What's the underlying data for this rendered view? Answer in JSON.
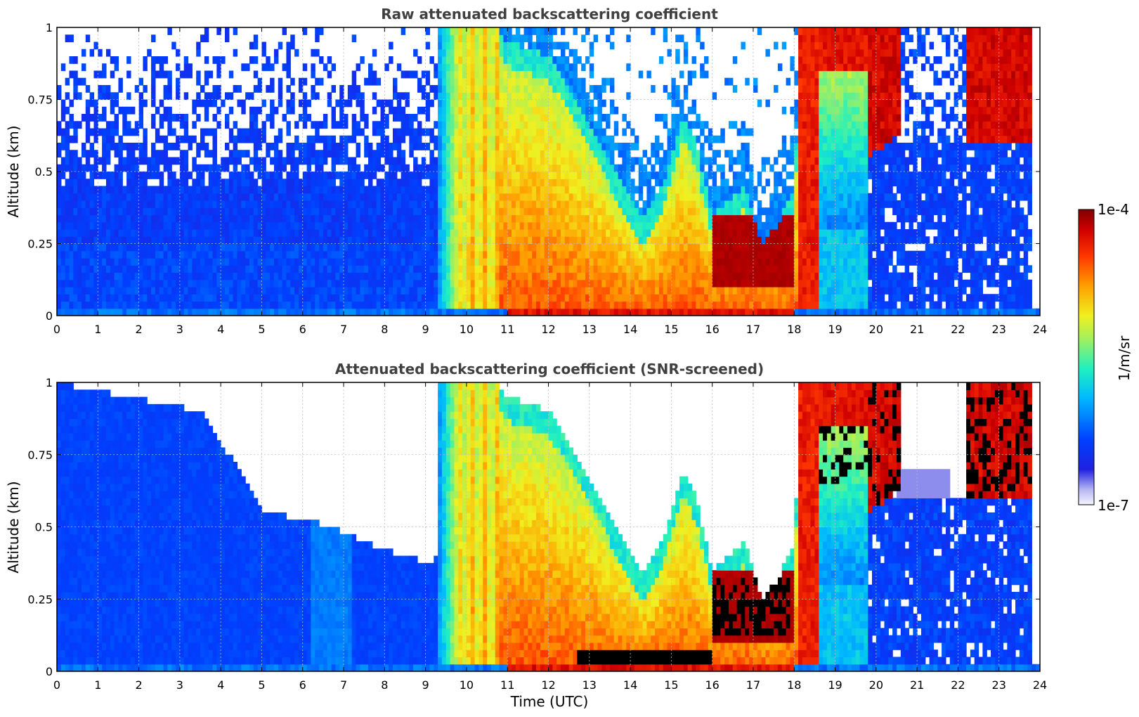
{
  "chart_data": [
    {
      "type": "heatmap",
      "title": "Raw attenuated backscattering coefficient",
      "xlabel": "",
      "ylabel": "Altitude (km)",
      "xlim": [
        0,
        24
      ],
      "ylim": [
        0,
        1
      ],
      "x_ticks": [
        "0",
        "1",
        "2",
        "3",
        "4",
        "5",
        "6",
        "7",
        "8",
        "9",
        "10",
        "11",
        "12",
        "13",
        "14",
        "15",
        "16",
        "17",
        "18",
        "19",
        "20",
        "21",
        "22",
        "23",
        "24"
      ],
      "y_ticks": [
        "0",
        "0.25",
        "0.5",
        "0.75",
        "1"
      ],
      "grid": true,
      "colorscale": "jet (log)",
      "color_range": [
        "1e-7",
        "1e-4"
      ],
      "screened": false
    },
    {
      "type": "heatmap",
      "title": "Attenuated backscattering coefficient (SNR-screened)",
      "xlabel": "Time (UTC)",
      "ylabel": "Altitude (km)",
      "xlim": [
        0,
        24
      ],
      "ylim": [
        0,
        1
      ],
      "x_ticks": [
        "0",
        "1",
        "2",
        "3",
        "4",
        "5",
        "6",
        "7",
        "8",
        "9",
        "10",
        "11",
        "12",
        "13",
        "14",
        "15",
        "16",
        "17",
        "18",
        "19",
        "20",
        "21",
        "22",
        "23",
        "24"
      ],
      "y_ticks": [
        "0",
        "0.25",
        "0.5",
        "0.75",
        "1"
      ],
      "grid": true,
      "colorscale": "jet (log)",
      "color_range": [
        "1e-7",
        "1e-4"
      ],
      "screened": true
    }
  ],
  "colorbar": {
    "label": "1/m/sr",
    "max_label": "1e-4",
    "min_label": "1e-7",
    "scale": "log",
    "placement": "right"
  }
}
